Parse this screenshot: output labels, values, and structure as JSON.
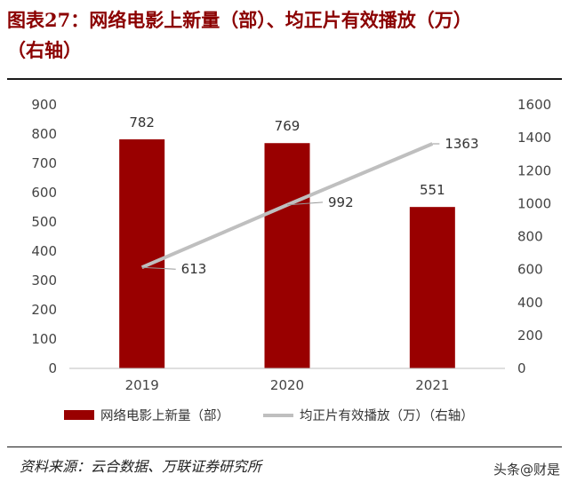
{
  "title_line1": "图表27：网络电影上新量（部）、均正片有效播放（万）",
  "title_line2": "（右轴）",
  "source": "资料来源：云合数据、万联证券研究所",
  "watermark": "头条@财是",
  "chart_data": {
    "type": "bar",
    "categories": [
      "2019",
      "2020",
      "2021"
    ],
    "series": [
      {
        "name": "网络电影上新量（部）",
        "type": "bar",
        "axis": "left",
        "values": [
          782,
          769,
          551
        ],
        "color": "#990000"
      },
      {
        "name": "均正片有效播放（万）（右轴）",
        "type": "line",
        "axis": "right",
        "values": [
          613,
          992,
          1363
        ],
        "color": "#bfbfbf"
      }
    ],
    "ylim_left": [
      0,
      900
    ],
    "yticks_left": [
      0,
      100,
      200,
      300,
      400,
      500,
      600,
      700,
      800,
      900
    ],
    "ylim_right": [
      0,
      1600
    ],
    "yticks_right": [
      0,
      200,
      400,
      600,
      800,
      1000,
      1200,
      1400,
      1600
    ],
    "grid": false,
    "legend": "bottom"
  }
}
